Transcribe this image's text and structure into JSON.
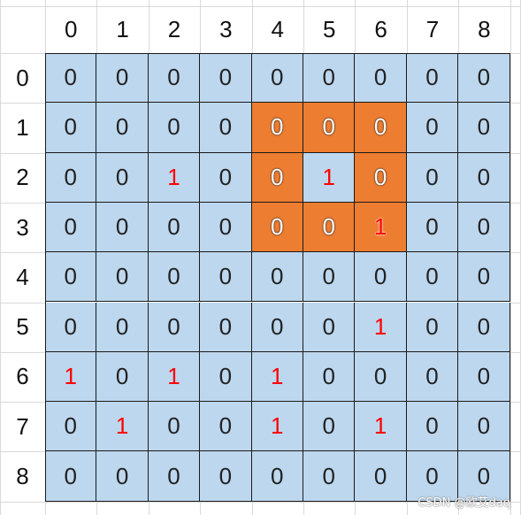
{
  "column_headers": [
    "0",
    "1",
    "2",
    "3",
    "4",
    "5",
    "6",
    "7",
    "8"
  ],
  "row_headers": [
    "0",
    "1",
    "2",
    "3",
    "4",
    "5",
    "6",
    "7",
    "8"
  ],
  "grid": [
    [
      "0",
      "0",
      "0",
      "0",
      "0",
      "0",
      "0",
      "0",
      "0"
    ],
    [
      "0",
      "0",
      "0",
      "0",
      "0",
      "0",
      "0",
      "0",
      "0"
    ],
    [
      "0",
      "0",
      "1",
      "0",
      "0",
      "1",
      "0",
      "0",
      "0"
    ],
    [
      "0",
      "0",
      "0",
      "0",
      "0",
      "0",
      "1",
      "0",
      "0"
    ],
    [
      "0",
      "0",
      "0",
      "0",
      "0",
      "0",
      "0",
      "0",
      "0"
    ],
    [
      "0",
      "0",
      "0",
      "0",
      "0",
      "0",
      "1",
      "0",
      "0"
    ],
    [
      "1",
      "0",
      "1",
      "0",
      "1",
      "0",
      "0",
      "0",
      "0"
    ],
    [
      "0",
      "1",
      "0",
      "0",
      "1",
      "0",
      "1",
      "0",
      "0"
    ],
    [
      "0",
      "0",
      "0",
      "0",
      "0",
      "0",
      "0",
      "0",
      "0"
    ]
  ],
  "highlighted_cells": [
    [
      1,
      4
    ],
    [
      1,
      5
    ],
    [
      1,
      6
    ],
    [
      2,
      4
    ],
    [
      2,
      6
    ],
    [
      3,
      4
    ],
    [
      3,
      5
    ],
    [
      3,
      6
    ]
  ],
  "colors": {
    "cell_fill": "#bdd7ee",
    "highlight_fill": "#ed7d31",
    "one_text": "#ff0000",
    "zero_text": "#222222",
    "border": "#1a1a1a"
  },
  "watermark": "CSDN @欧艾daq"
}
